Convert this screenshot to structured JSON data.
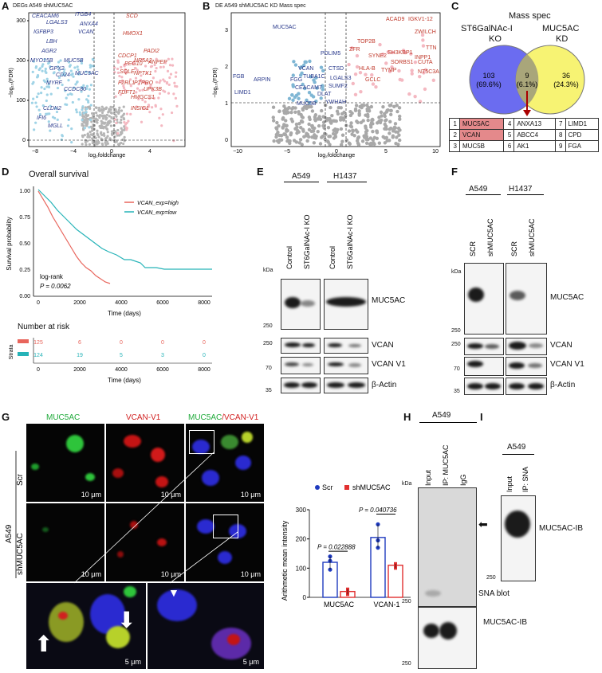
{
  "panels": {
    "A": {
      "letter": "A",
      "title": "DEGs A549 shMUC5AC",
      "xlabel": "log₂foldchange",
      "ylabel": "−log₁₀(FDR)",
      "yticks": [
        "0",
        "100",
        "200",
        "300"
      ],
      "xticks": [
        "−8",
        "−4",
        "0",
        "4"
      ],
      "blue_genes": [
        "CEACAM6",
        "LGALS3",
        "IGFBP3",
        "LBH",
        "AGR2",
        "MYO15B",
        "GPX2",
        "CD24",
        "MYRF",
        "CCDC80",
        "CLDN2",
        "IFI6",
        "MGLL",
        "ITGB4",
        "ANXA4",
        "VCAN",
        "MUC5B",
        "MUC5AC"
      ],
      "red_genes": [
        "SCD",
        "HMOX1",
        "CDCP1",
        "PADI2",
        "PEG10",
        "NR5A2",
        "ANPEP",
        "SQLE",
        "NPTX1",
        "F2RL1",
        "PTPRO",
        "UPK3B",
        "FDFT1",
        "HMGCS1",
        "INSIG1"
      ]
    },
    "B": {
      "letter": "B",
      "title": "DE A549 shMUC5AC KD Mass spec",
      "xlabel": "log₂foldchange",
      "ylabel": "−log₁₀(FDR)",
      "yticks": [
        "0",
        "1",
        "2",
        "3"
      ],
      "xticks": [
        "−10",
        "−5",
        "0",
        "5",
        "10"
      ],
      "blue_genes": [
        "MUC5AC",
        "PDLIM5",
        "FGB",
        "ARPIN",
        "VCAN",
        "CTSD",
        "TUBA1C",
        "LGALS3",
        "LIMD1",
        "FGG",
        "CEACAM7",
        "SUMF2",
        "DLAT",
        "MUC5B",
        "YWHAH"
      ],
      "red_genes": [
        "ACAD9",
        "IGKV1-12",
        "ZWILCH",
        "TOP2B",
        "ZFR",
        "SH3KBP1",
        "INPP1",
        "SYNE2",
        "SORBS1",
        "CUTA",
        "TTN",
        "HLA-B",
        "TYMP",
        "NT5C3A",
        "GCLC"
      ]
    },
    "C": {
      "letter": "C",
      "title": "Mass spec",
      "left_label_1": "ST6GalNAc-I",
      "left_label_2": "KO",
      "right_label_1": "MUC5AC",
      "right_label_2": "KD",
      "left_count": "103",
      "left_pct": "(69.6%)",
      "mid_count": "9",
      "mid_pct": "(6.1%)",
      "right_count": "36",
      "right_pct": "(24.3%)",
      "table": [
        [
          "1",
          "MUC5AC",
          "4",
          "ANXA13",
          "7",
          "LIMD1"
        ],
        [
          "2",
          "VCAN",
          "5",
          "ABCC4",
          "8",
          "CPD"
        ],
        [
          "3",
          "MUC5B",
          "6",
          "AK1",
          "9",
          "FGA"
        ]
      ]
    },
    "D": {
      "letter": "D",
      "title": "Overall survival",
      "xlabel": "Time (days)",
      "ylabel": "Survival probability",
      "legend_high": "VCAN_exp=high",
      "legend_low": "VCAN_exp=low",
      "logrank": "log-rank",
      "pval": "P = 0.0062",
      "yticks": [
        "0.00",
        "0.25",
        "0.50",
        "0.75",
        "1.00"
      ],
      "xticks": [
        "0",
        "2000",
        "4000",
        "6000",
        "8000"
      ],
      "risk_title": "Number at risk",
      "strata": "Strata",
      "risk_high": [
        "125",
        "6",
        "0",
        "0",
        "0"
      ],
      "risk_low": [
        "124",
        "19",
        "5",
        "3",
        "0"
      ]
    },
    "E": {
      "letter": "E",
      "cell1": "A549",
      "cell2": "H1437",
      "lanes": [
        "Control",
        "ST6GalNAc-I KO",
        "Control",
        "ST6GalNAc-I KO"
      ],
      "kda": "kDa",
      "markers": [
        "250",
        "250",
        "70",
        "35"
      ],
      "proteins": [
        "MUC5AC",
        "VCAN",
        "VCAN V1",
        "β-Actin"
      ]
    },
    "F": {
      "letter": "F",
      "cell1": "A549",
      "cell2": "H1437",
      "lanes": [
        "SCR",
        "shMUC5AC",
        "SCR",
        "shMUC5AC"
      ],
      "kda": "kDa",
      "markers": [
        "250",
        "250",
        "70",
        "35"
      ],
      "proteins": [
        "MUC5AC",
        "VCAN",
        "VCAN V1",
        "β-Actin"
      ]
    },
    "G": {
      "letter": "G",
      "col1": "MUC5AC",
      "col2": "VCAN-V1",
      "col3a": "MUC5AC",
      "col3b": "/VCAN-V1",
      "row_cell": "A549",
      "row1": "Scr",
      "row2": "shMUC5AC",
      "scale10": "10 μm",
      "scale5": "5 μm",
      "chart_ylabel": "Arithmetic mean intensity",
      "legend_scr": "Scr",
      "legend_sh": "shMUC5AC",
      "p1": "P = 0.022888",
      "p2": "P = 0.040736"
    },
    "H": {
      "letter": "H",
      "cell": "A549",
      "lanes": [
        "Input",
        "IP: MUC5AC",
        "IgG"
      ],
      "kda": "kDa",
      "marker": "250",
      "label1": "SNA blot",
      "label2": "MUC5AC-IB"
    },
    "I": {
      "letter": "I",
      "cell": "A549",
      "lanes": [
        "Input",
        "IP: SNA"
      ],
      "marker": "250",
      "label": "MUC5AC-IB"
    }
  },
  "colors": {
    "blue": "#2a3a8c",
    "red": "#c0392b",
    "light_blue": "#9fd3e6",
    "pink": "#f4b8c1",
    "venn_left": "#6b6cf0",
    "venn_right": "#f7f26b",
    "venn_mid": "#a9a67a",
    "km_high": "#e8655c",
    "km_low": "#26b3b8",
    "bar_blue": "#1f3bbf",
    "bar_red": "#e23030"
  },
  "chart_data": [
    {
      "type": "bar",
      "categories": [
        "MUC5AC",
        "VCAN-1"
      ],
      "series": [
        {
          "name": "Scr",
          "values": [
            120,
            205
          ]
        },
        {
          "name": "shMUC5AC",
          "values": [
            20,
            110
          ]
        }
      ],
      "points": {
        "Scr": [
          [
            95,
            125,
            140
          ],
          [
            170,
            195,
            250
          ]
        ],
        "shMUC5AC": [
          [
            10,
            20,
            28
          ],
          [
            100,
            108,
            115
          ]
        ]
      },
      "ylabel": "Arithmetic mean intensity",
      "ylim": [
        0,
        300
      ],
      "yticks": [
        0,
        100,
        200,
        300
      ]
    }
  ]
}
